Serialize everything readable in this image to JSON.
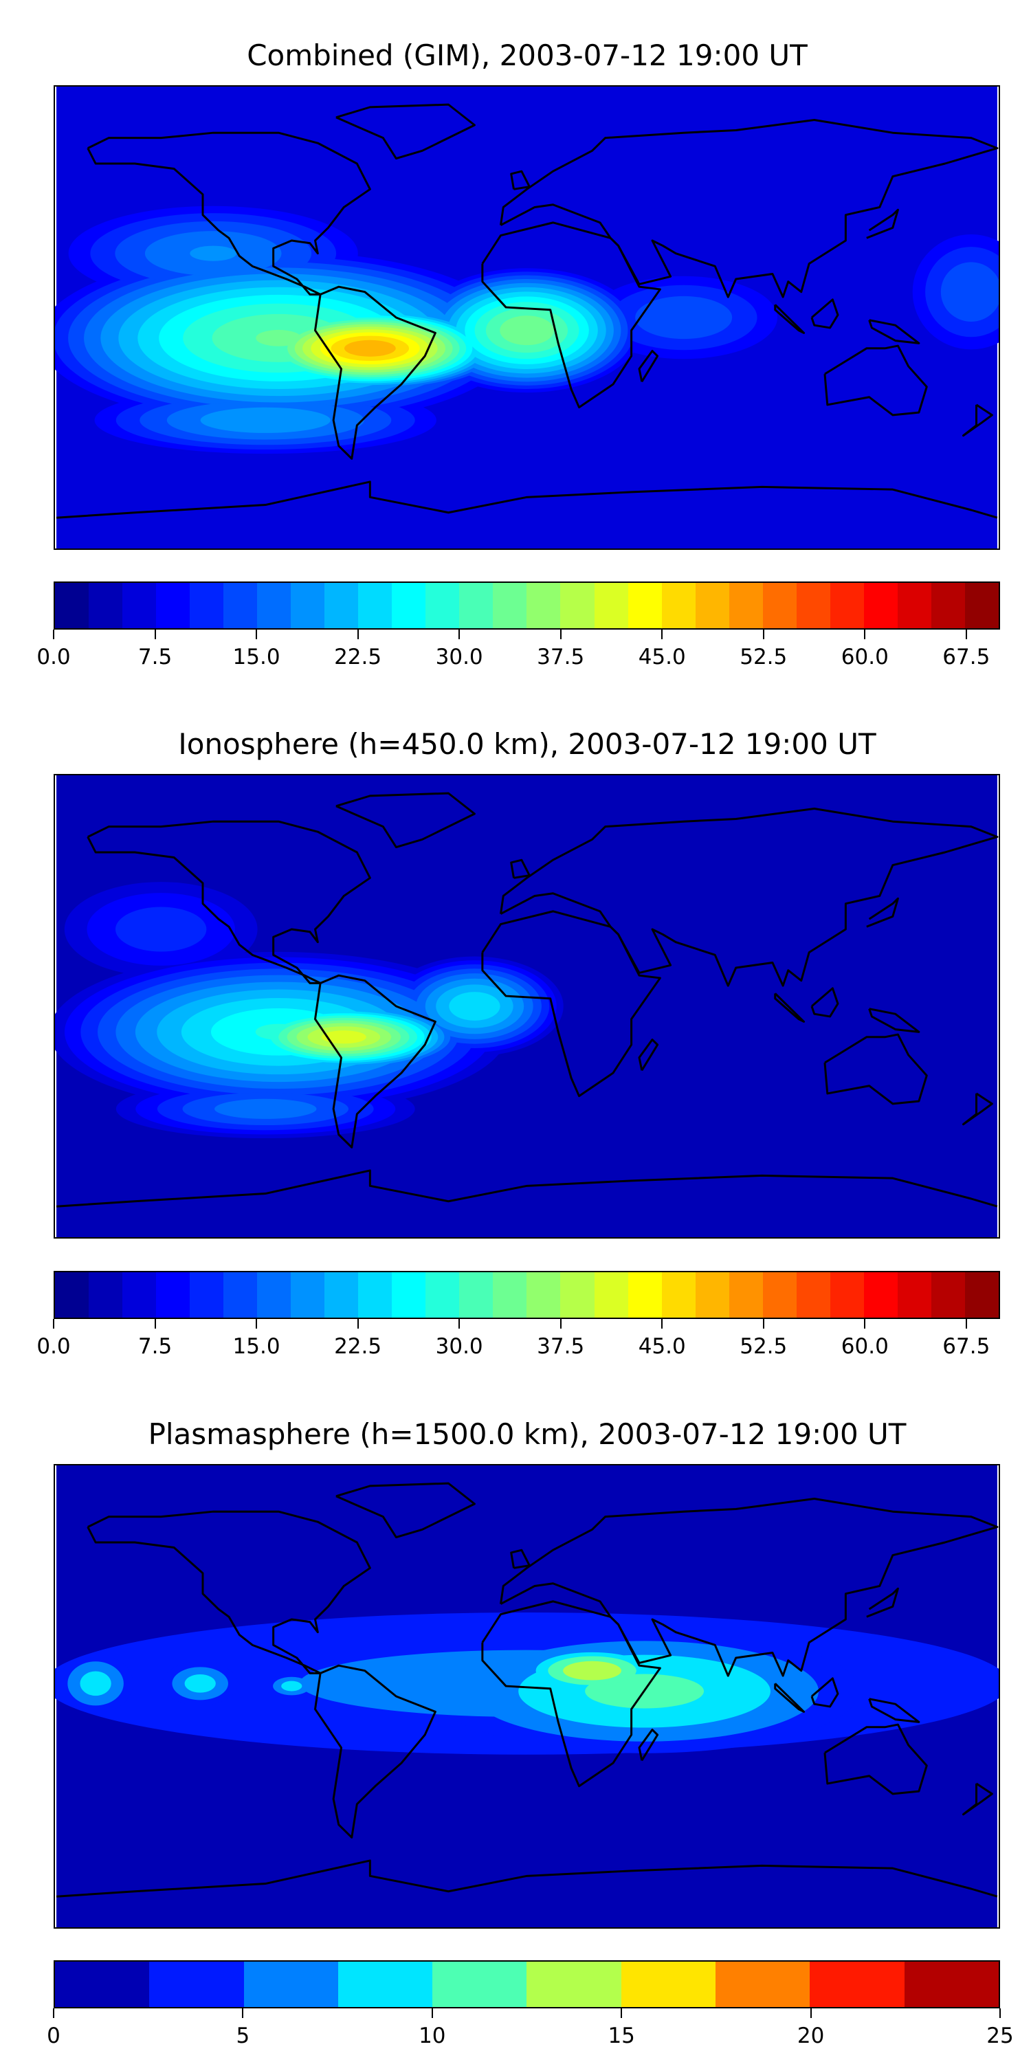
{
  "chart_data": [
    {
      "type": "heatmap",
      "title": "Combined (GIM), 2003-07-12 19:00 UT",
      "projection": "plate-carree",
      "lon_range": [
        -180,
        180
      ],
      "lat_range": [
        -90,
        90
      ],
      "levels": {
        "min": 0,
        "max": 70,
        "step": 2.5
      },
      "colormap": "jet",
      "colorbar_ticks": [
        "0.0",
        "7.5",
        "15.0",
        "22.5",
        "30.0",
        "37.5",
        "45.0",
        "52.5",
        "60.0",
        "67.5"
      ],
      "colorbar_tick_values": [
        0,
        7.5,
        15,
        22.5,
        30,
        37.5,
        45,
        52.5,
        60,
        67.5
      ],
      "background_value": 6,
      "hotspots": [
        {
          "lon": -95,
          "lat": -8,
          "rlon": 95,
          "rlat": 35,
          "peak": 33
        },
        {
          "lon": -60,
          "lat": -12,
          "rlon": 55,
          "rlat": 18,
          "peak": 50
        },
        {
          "lon": 0,
          "lat": -5,
          "rlon": 45,
          "rlat": 25,
          "peak": 35
        },
        {
          "lon": -100,
          "lat": -40,
          "rlon": 70,
          "rlat": 14,
          "peak": 20
        },
        {
          "lon": -120,
          "lat": 25,
          "rlon": 60,
          "rlat": 20,
          "peak": 18
        },
        {
          "lon": 60,
          "lat": 0,
          "rlon": 40,
          "rlat": 18,
          "peak": 15
        },
        {
          "lon": 170,
          "lat": 10,
          "rlon": 25,
          "rlat": 25,
          "peak": 15
        }
      ]
    },
    {
      "type": "heatmap",
      "title": "Ionosphere  (h=450.0 km), 2003-07-12 19:00 UT",
      "projection": "plate-carree",
      "lon_range": [
        -180,
        180
      ],
      "lat_range": [
        -90,
        90
      ],
      "levels": {
        "min": 0,
        "max": 70,
        "step": 2.5
      },
      "colormap": "jet",
      "colorbar_ticks": [
        "0.0",
        "7.5",
        "15.0",
        "22.5",
        "30.0",
        "37.5",
        "45.0",
        "52.5",
        "60.0",
        "67.5"
      ],
      "colorbar_tick_values": [
        0,
        7.5,
        15,
        22.5,
        30,
        37.5,
        45,
        52.5,
        60,
        67.5
      ],
      "background_value": 4,
      "hotspots": [
        {
          "lon": -95,
          "lat": -10,
          "rlon": 90,
          "rlat": 32,
          "peak": 28
        },
        {
          "lon": -70,
          "lat": -12,
          "rlon": 50,
          "rlat": 15,
          "peak": 42
        },
        {
          "lon": -20,
          "lat": 0,
          "rlon": 35,
          "rlat": 20,
          "peak": 25
        },
        {
          "lon": -100,
          "lat": -40,
          "rlon": 60,
          "rlat": 12,
          "peak": 17
        },
        {
          "lon": -140,
          "lat": 30,
          "rlon": 40,
          "rlat": 20,
          "peak": 12
        }
      ]
    },
    {
      "type": "heatmap",
      "title": "Plasmasphere (h=1500.0 km), 2003-07-12 19:00 UT",
      "projection": "plate-carree",
      "lon_range": [
        -180,
        180
      ],
      "lat_range": [
        -90,
        90
      ],
      "levels": {
        "min": 0,
        "max": 25,
        "step": 2.5
      },
      "colormap": "jet",
      "colorbar_ticks": [
        "0",
        "5",
        "10",
        "15",
        "20",
        "25"
      ],
      "colorbar_tick_values": [
        0,
        5,
        10,
        15,
        20,
        25
      ],
      "background_value": 2,
      "hotspots": [
        {
          "lon": 0,
          "lat": 5,
          "rlon": 200,
          "rlat": 30,
          "peak": 6
        },
        {
          "lon": 45,
          "lat": 2,
          "rlon": 85,
          "rlat": 25,
          "peak": 11
        },
        {
          "lon": 25,
          "lat": 10,
          "rlon": 30,
          "rlat": 10,
          "peak": 15
        },
        {
          "lon": -165,
          "lat": 5,
          "rlon": 15,
          "rlat": 12,
          "peak": 9
        },
        {
          "lon": -125,
          "lat": 5,
          "rlon": 15,
          "rlat": 9,
          "peak": 9
        },
        {
          "lon": -90,
          "lat": 4,
          "rlon": 10,
          "rlat": 5,
          "peak": 9
        }
      ]
    }
  ]
}
